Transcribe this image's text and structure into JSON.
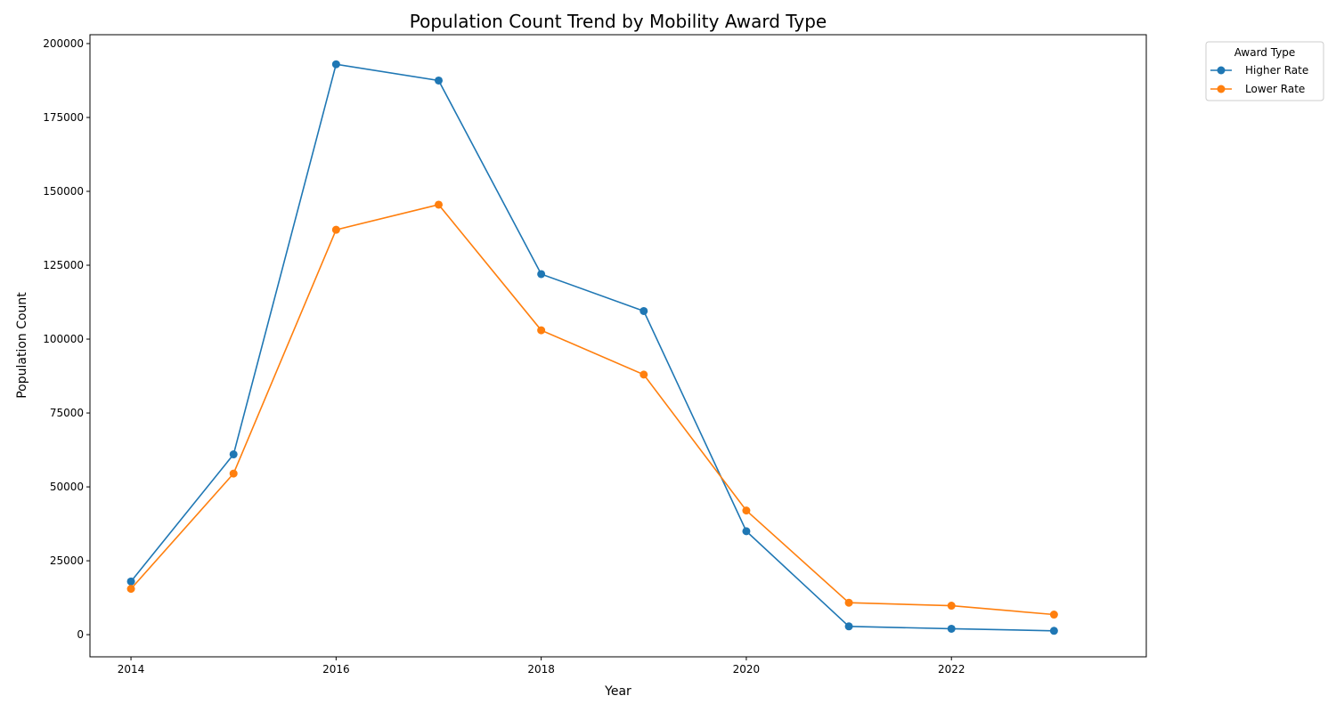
{
  "chart_data": {
    "type": "line",
    "title": "Population Count Trend by Mobility Award Type",
    "xlabel": "Year",
    "ylabel": "Population Count",
    "xlim": [
      2013.6,
      2023.9
    ],
    "ylim": [
      -7500,
      203000
    ],
    "x_ticks": [
      2014,
      2016,
      2018,
      2020,
      2022
    ],
    "y_ticks": [
      0,
      25000,
      50000,
      75000,
      100000,
      125000,
      150000,
      175000,
      200000
    ],
    "grid": false,
    "legend": {
      "title": "Award Type",
      "placement": "outside-top-right"
    },
    "x": [
      2014,
      2015,
      2016,
      2017,
      2018,
      2019,
      2020,
      2021,
      2022,
      2023
    ],
    "series": [
      {
        "name": "Higher Rate",
        "color": "#1f77b4",
        "values": [
          18000,
          61000,
          193000,
          187500,
          122000,
          109500,
          35000,
          2800,
          2000,
          1300
        ]
      },
      {
        "name": "Lower Rate",
        "color": "#ff7f0e",
        "values": [
          15500,
          54500,
          137000,
          145500,
          103000,
          88000,
          42000,
          10800,
          9800,
          6800
        ]
      }
    ]
  }
}
